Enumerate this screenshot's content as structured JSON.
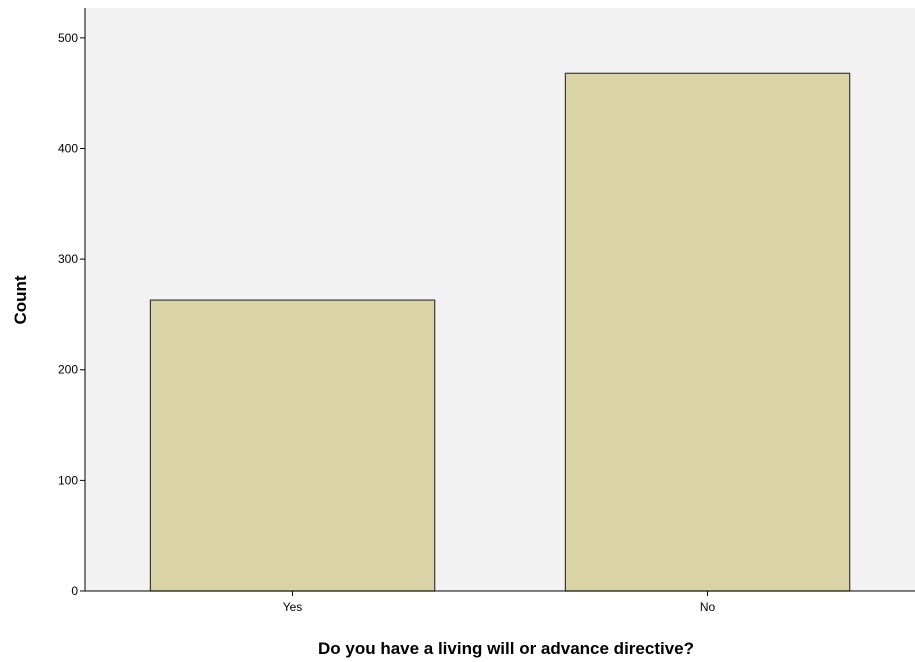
{
  "chart_data": {
    "type": "bar",
    "title": "",
    "xlabel": "Do you have a living will or advance directive?",
    "ylabel": "Count",
    "categories": [
      "Yes",
      "No"
    ],
    "values": [
      263,
      468
    ],
    "ylim": [
      0,
      527
    ],
    "yticks": [
      0,
      100,
      200,
      300,
      400,
      500
    ],
    "grid": false,
    "legend": "none",
    "colors": {
      "bar_fill": "#d9d3a5",
      "bar_stroke": "#3a3a3a",
      "plot_background": "#f2f2f2",
      "axis": "#000000"
    }
  }
}
